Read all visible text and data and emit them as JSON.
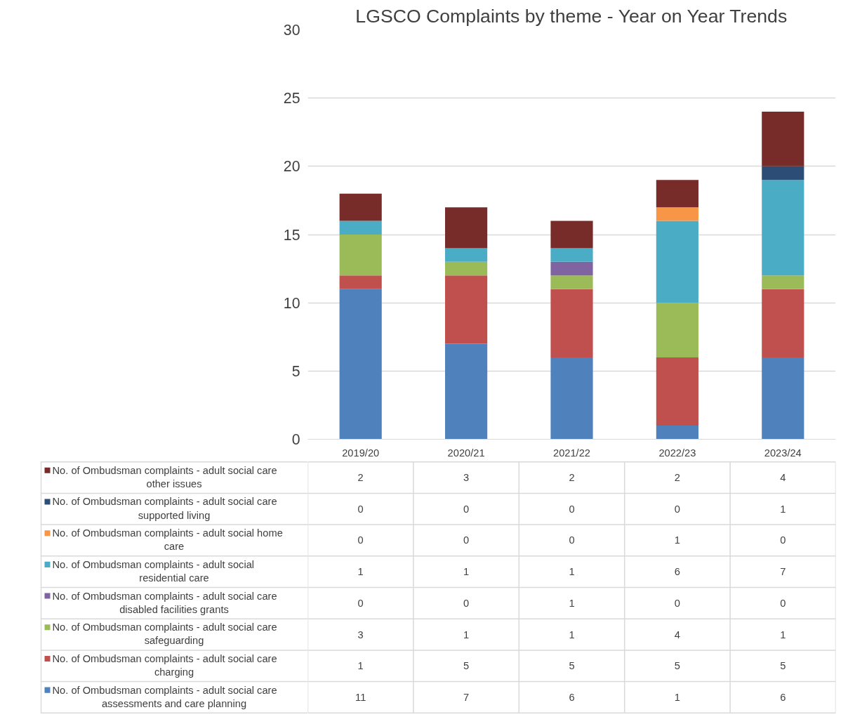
{
  "chart_data": {
    "type": "bar",
    "stacked": true,
    "title": "LGSCO Complaints by theme - Year on Year Trends",
    "categories": [
      "2019/20",
      "2020/21",
      "2021/22",
      "2022/23",
      "2023/24"
    ],
    "series": [
      {
        "name": "No. of Ombudsman complaints - adult social care assessments and care planning",
        "color": "#4f81bd",
        "values": [
          11,
          7,
          6,
          1,
          6
        ]
      },
      {
        "name": "No. of Ombudsman complaints - adult social care charging",
        "color": "#c0504d",
        "values": [
          1,
          5,
          5,
          5,
          5
        ]
      },
      {
        "name": "No. of Ombudsman complaints - adult social care safeguarding",
        "color": "#9bbb59",
        "values": [
          3,
          1,
          1,
          4,
          1
        ]
      },
      {
        "name": "No. of Ombudsman complaints - adult social care disabled facilities grants",
        "color": "#8064a2",
        "values": [
          0,
          0,
          1,
          0,
          0
        ]
      },
      {
        "name": "No. of Ombudsman complaints - adult social residential care",
        "color": "#4bacc6",
        "values": [
          1,
          1,
          1,
          6,
          7
        ]
      },
      {
        "name": "No. of Ombudsman complaints - adult social home care",
        "color": "#f79646",
        "values": [
          0,
          0,
          0,
          1,
          0
        ]
      },
      {
        "name": "No. of Ombudsman complaints - adult social care supported living",
        "color": "#2c4d75",
        "values": [
          0,
          0,
          0,
          0,
          1
        ]
      },
      {
        "name": "No. of Ombudsman complaints - adult social care other issues",
        "color": "#772c2a",
        "values": [
          2,
          3,
          2,
          2,
          4
        ]
      }
    ],
    "ylim": [
      0,
      30
    ],
    "yticks": [
      0,
      5,
      10,
      15,
      20,
      25,
      30
    ],
    "grid": "y",
    "legend": "bottom",
    "data_labels": true
  }
}
